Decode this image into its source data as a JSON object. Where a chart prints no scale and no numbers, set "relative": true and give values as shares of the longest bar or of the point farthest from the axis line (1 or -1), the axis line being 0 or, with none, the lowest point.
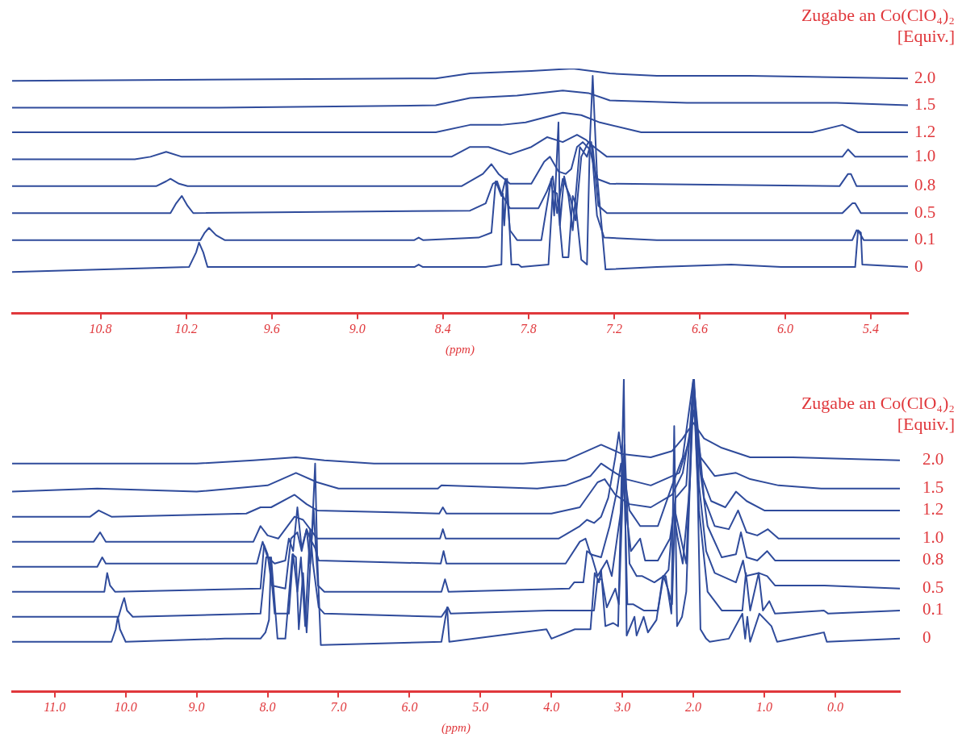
{
  "chart_data": [
    {
      "type": "line",
      "relative": true,
      "marker": "none",
      "legend_title": "Zugabe an Co(ClO₄)₂\n[Equiv.]",
      "xlabel": "(ppm)",
      "xlim": [
        11.42,
        5.14
      ],
      "xticks": [
        10.8,
        10.2,
        9.6,
        {
          "value": 9,
          "label": "9.0"
        },
        8.4,
        7.8,
        7.2,
        6.6,
        {
          "value": 6,
          "label": "6.0"
        },
        5.4
      ],
      "series": [
        {
          "name": "2.0",
          "color": "#2f4b9b",
          "x": [
            11.42,
            8.45,
            8.21,
            7.78,
            7.49,
            7.23,
            6.9,
            6.25,
            5.14
          ],
          "values": [
            0.95,
            0.96,
            0.98,
            0.99,
            1,
            0.98,
            0.97,
            0.97,
            0.96
          ]
        },
        {
          "name": "1.5",
          "color": "#2f4b9b",
          "x": [
            11.42,
            9.97,
            8.45,
            8.21,
            7.88,
            7.56,
            7.38,
            7.23,
            6.69,
            5.64,
            5.14
          ],
          "values": [
            0.84,
            0.84,
            0.85,
            0.88,
            0.89,
            0.91,
            0.9,
            0.87,
            0.86,
            0.86,
            0.85
          ]
        },
        {
          "name": "1.2",
          "color": "#2f4b9b",
          "x": [
            11.42,
            10.36,
            9.97,
            8.45,
            8.21,
            7.99,
            7.82,
            7.56,
            7.43,
            7.3,
            7.01,
            5.81,
            5.6,
            5.49,
            5.14
          ],
          "values": [
            0.74,
            0.74,
            0.74,
            0.74,
            0.77,
            0.77,
            0.78,
            0.82,
            0.81,
            0.78,
            0.74,
            0.74,
            0.77,
            0.74,
            0.74
          ]
        },
        {
          "name": "1.0",
          "color": "#2f4b9b",
          "x": [
            11.42,
            10.56,
            10.45,
            10.34,
            10.23,
            8.34,
            8.21,
            8.08,
            7.93,
            7.78,
            7.67,
            7.56,
            7.46,
            7.4,
            7.34,
            7.25,
            5.71,
            5.6,
            5.56,
            5.51,
            5.14
          ],
          "values": [
            0.63,
            0.63,
            0.64,
            0.66,
            0.64,
            0.64,
            0.68,
            0.68,
            0.65,
            0.68,
            0.72,
            0.7,
            0.73,
            0.71,
            0.68,
            0.64,
            0.64,
            0.64,
            0.67,
            0.64,
            0.64
          ]
        },
        {
          "name": "0.8",
          "color": "#2f4b9b",
          "x": [
            11.42,
            10.41,
            10.34,
            10.31,
            10.25,
            10.19,
            8.27,
            8.12,
            8.06,
            8.01,
            7.93,
            7.78,
            7.69,
            7.65,
            7.59,
            7.54,
            7.5,
            7.46,
            7.42,
            7.37,
            7.32,
            7.23,
            5.62,
            5.56,
            5.54,
            5.5,
            5.14
          ],
          "values": [
            0.52,
            0.52,
            0.54,
            0.55,
            0.53,
            0.52,
            0.52,
            0.57,
            0.61,
            0.57,
            0.53,
            0.53,
            0.62,
            0.64,
            0.58,
            0.57,
            0.59,
            0.68,
            0.7,
            0.67,
            0.55,
            0.53,
            0.52,
            0.57,
            0.57,
            0.52,
            0.52
          ]
        },
        {
          "name": "0.5",
          "color": "#2f4b9b",
          "x": [
            11.42,
            10.31,
            10.27,
            10.23,
            10.19,
            10.15,
            8.21,
            8.1,
            8.05,
            8.02,
            7.99,
            7.93,
            7.73,
            7.67,
            7.63,
            7.6,
            7.56,
            7.51,
            7.47,
            7.43,
            7.38,
            7.35,
            7.31,
            7.25,
            5.6,
            5.53,
            5.51,
            5.47,
            5.14
          ],
          "values": [
            0.41,
            0.41,
            0.45,
            0.48,
            0.44,
            0.41,
            0.42,
            0.45,
            0.53,
            0.54,
            0.49,
            0.43,
            0.43,
            0.5,
            0.56,
            0.41,
            0.55,
            0.48,
            0.38,
            0.64,
            0.7,
            0.68,
            0.44,
            0.41,
            0.41,
            0.45,
            0.45,
            0.41,
            0.41
          ]
        },
        {
          "name": "0.1",
          "color": "#2f4b9b",
          "x": [
            11.42,
            10.1,
            10.07,
            10.04,
            9.99,
            9.93,
            8.6,
            8.57,
            8.54,
            8.15,
            8.06,
            8.03,
            7.99,
            7.96,
            7.93,
            7.88,
            7.71,
            7.64,
            7.62,
            7.59,
            7.58,
            7.55,
            7.52,
            7.49,
            7.44,
            7.39,
            7.36,
            7.32,
            7.27,
            6.9,
            5.53,
            5.5,
            5.48,
            5.45,
            5.14
          ],
          "values": [
            0.3,
            0.3,
            0.33,
            0.35,
            0.32,
            0.3,
            0.3,
            0.31,
            0.3,
            0.31,
            0.33,
            0.54,
            0.48,
            0.55,
            0.34,
            0.3,
            0.3,
            0.55,
            0.4,
            0.78,
            0.36,
            0.56,
            0.48,
            0.34,
            0.68,
            0.64,
            0.7,
            0.4,
            0.31,
            0.3,
            0.3,
            0.34,
            0.33,
            0.3,
            0.3
          ]
        },
        {
          "name": "0",
          "color": "#2f4b9b",
          "x": [
            11.42,
            10.18,
            10.13,
            10.11,
            10.08,
            10.05,
            8.6,
            8.57,
            8.54,
            8.1,
            7.99,
            7.98,
            7.97,
            7.95,
            7.92,
            7.87,
            7.85,
            7.66,
            7.63,
            7.6,
            7.56,
            7.52,
            7.49,
            7.47,
            7.43,
            7.39,
            7.37,
            7.35,
            7.32,
            7.26,
            6.9,
            6.38,
            6.03,
            5.51,
            5.49,
            5.47,
            5.46,
            5.14
          ],
          "values": [
            0.17,
            0.19,
            0.25,
            0.29,
            0.25,
            0.19,
            0.19,
            0.2,
            0.19,
            0.19,
            0.2,
            0.49,
            0.36,
            0.55,
            0.2,
            0.2,
            0.19,
            0.2,
            0.5,
            0.49,
            0.23,
            0.23,
            0.48,
            0.45,
            0.22,
            0.2,
            0.7,
            0.97,
            0.57,
            0.18,
            0.19,
            0.2,
            0.19,
            0.19,
            0.34,
            0.33,
            0.2,
            0.19
          ]
        }
      ]
    },
    {
      "type": "line",
      "relative": true,
      "marker": "none",
      "legend_title": "Zugabe an Co(ClO₄)₂\n[Equiv.]",
      "xlabel": "(ppm)",
      "xlim": [
        11.6,
        -0.91
      ],
      "xticks": [
        {
          "value": 11,
          "label": "11.0"
        },
        {
          "value": 10,
          "label": "10.0"
        },
        {
          "value": 9,
          "label": "9.0"
        },
        {
          "value": 8,
          "label": "8.0"
        },
        {
          "value": 7,
          "label": "7.0"
        },
        {
          "value": 6,
          "label": "6.0"
        },
        {
          "value": 5,
          "label": "5.0"
        },
        {
          "value": 4,
          "label": "4.0"
        },
        {
          "value": 3,
          "label": "3.0"
        },
        {
          "value": 2,
          "label": "2.0"
        },
        {
          "value": 1,
          "label": "1.0"
        },
        {
          "value": 0,
          "label": "0.0"
        }
      ],
      "series": [
        {
          "name": "2.0",
          "color": "#2f4b9b",
          "x": [
            11.6,
            10,
            9,
            8.2,
            7.6,
            7.2,
            6.5,
            5.5,
            4.4,
            3.8,
            3.3,
            3,
            2.6,
            2.3,
            2.15,
            2,
            1.85,
            1.6,
            1.2,
            0.6,
            -0.91
          ],
          "values": [
            0.73,
            0.73,
            0.73,
            0.74,
            0.75,
            0.74,
            0.73,
            0.73,
            0.73,
            0.74,
            0.79,
            0.76,
            0.75,
            0.77,
            0.81,
            0.86,
            0.81,
            0.78,
            0.75,
            0.75,
            0.74
          ]
        },
        {
          "name": "1.5",
          "color": "#2f4b9b",
          "x": [
            11.6,
            10.4,
            9,
            8,
            7.6,
            7.3,
            7,
            5.6,
            5.55,
            4.2,
            3.8,
            3.45,
            3.3,
            3.1,
            2.95,
            2.6,
            2.2,
            2.05,
            2,
            1.9,
            1.7,
            1.4,
            1.2,
            0.8,
            0.2,
            -0.91
          ],
          "values": [
            0.64,
            0.65,
            0.64,
            0.66,
            0.7,
            0.67,
            0.65,
            0.65,
            0.66,
            0.65,
            0.66,
            0.69,
            0.73,
            0.7,
            0.68,
            0.66,
            0.7,
            0.81,
            0.9,
            0.75,
            0.69,
            0.7,
            0.68,
            0.66,
            0.65,
            0.65
          ]
        },
        {
          "name": "1.2",
          "color": "#2f4b9b",
          "x": [
            11.6,
            10.5,
            10.38,
            10.2,
            8.3,
            8.1,
            7.95,
            7.62,
            7.45,
            7.3,
            5.58,
            5.53,
            5.48,
            4,
            3.6,
            3.35,
            3.25,
            3.1,
            2.9,
            2.6,
            2.3,
            2.15,
            2.05,
            2,
            1.9,
            1.75,
            1.55,
            1.4,
            1.25,
            1,
            0.5,
            -0.91
          ],
          "values": [
            0.56,
            0.56,
            0.58,
            0.56,
            0.57,
            0.59,
            0.59,
            0.63,
            0.6,
            0.58,
            0.57,
            0.59,
            0.57,
            0.57,
            0.59,
            0.67,
            0.68,
            0.63,
            0.6,
            0.59,
            0.63,
            0.7,
            0.83,
            0.97,
            0.7,
            0.61,
            0.59,
            0.64,
            0.61,
            0.58,
            0.58,
            0.58
          ]
        },
        {
          "name": "1.0",
          "color": "#2f4b9b",
          "x": [
            11.6,
            10.45,
            10.36,
            10.28,
            8.2,
            8.1,
            8,
            7.85,
            7.62,
            7.5,
            7.4,
            7.3,
            5.57,
            5.53,
            5.49,
            3.9,
            3.6,
            3.5,
            3.4,
            3.3,
            3.2,
            3.1,
            3.05,
            2.98,
            2.9,
            2.75,
            2.5,
            2.3,
            2.15,
            2,
            1.85,
            1.7,
            1.5,
            1.37,
            1.25,
            1.1,
            0.95,
            0.8,
            -0.91
          ],
          "values": [
            0.48,
            0.48,
            0.51,
            0.48,
            0.48,
            0.53,
            0.5,
            0.49,
            0.56,
            0.55,
            0.52,
            0.49,
            0.49,
            0.52,
            0.49,
            0.49,
            0.53,
            0.55,
            0.54,
            0.56,
            0.62,
            0.75,
            0.83,
            0.7,
            0.58,
            0.53,
            0.53,
            0.66,
            0.75,
            1,
            0.62,
            0.53,
            0.52,
            0.58,
            0.51,
            0.5,
            0.52,
            0.49,
            0.49
          ]
        },
        {
          "name": "0.8",
          "color": "#2f4b9b",
          "x": [
            11.6,
            10.4,
            10.33,
            10.28,
            8.15,
            8.07,
            8,
            7.9,
            7.75,
            7.7,
            7.64,
            7.58,
            7.52,
            7.45,
            7.4,
            7.33,
            7.28,
            5.56,
            5.52,
            5.48,
            3.8,
            3.6,
            3.52,
            3.45,
            3.3,
            3.18,
            3.08,
            3.02,
            2.95,
            2.88,
            2.75,
            2.68,
            2.5,
            2.33,
            2.25,
            2.1,
            2,
            1.9,
            1.8,
            1.6,
            1.4,
            1.33,
            1.25,
            1.1,
            0.96,
            0.85,
            -0.91
          ],
          "values": [
            0.4,
            0.4,
            0.43,
            0.41,
            0.41,
            0.48,
            0.43,
            0.41,
            0.42,
            0.49,
            0.45,
            0.59,
            0.46,
            0.52,
            0.49,
            0.46,
            0.42,
            0.41,
            0.45,
            0.41,
            0.41,
            0.48,
            0.49,
            0.44,
            0.43,
            0.53,
            0.64,
            0.73,
            0.58,
            0.45,
            0.49,
            0.42,
            0.42,
            0.49,
            0.62,
            0.66,
            1,
            0.7,
            0.53,
            0.43,
            0.44,
            0.51,
            0.43,
            0.42,
            0.45,
            0.42,
            0.42
          ]
        },
        {
          "name": "0.5",
          "color": "#2f4b9b",
          "x": [
            11.6,
            10.3,
            10.26,
            10.22,
            10.15,
            8.1,
            8.05,
            8,
            7.94,
            7.75,
            7.67,
            7.58,
            7.52,
            7.45,
            7.4,
            7.35,
            7.29,
            7.2,
            5.55,
            5.5,
            5.45,
            3.75,
            3.68,
            3.55,
            3.5,
            3.44,
            3.35,
            3.22,
            3.15,
            3.02,
            2.97,
            2.9,
            2.8,
            2.72,
            2.55,
            2.42,
            2.35,
            2.28,
            2.22,
            2.15,
            2.05,
            1.99,
            1.92,
            1.82,
            1.7,
            1.4,
            1.3,
            1.26,
            1.08,
            0.96,
            0.85,
            0.15,
            -0.91
          ],
          "values": [
            0.32,
            0.32,
            0.38,
            0.34,
            0.32,
            0.33,
            0.47,
            0.44,
            0.34,
            0.33,
            0.49,
            0.51,
            0.45,
            0.52,
            0.41,
            0.58,
            0.34,
            0.32,
            0.32,
            0.36,
            0.32,
            0.33,
            0.35,
            0.35,
            0.45,
            0.44,
            0.37,
            0.42,
            0.37,
            0.58,
            0.79,
            0.41,
            0.37,
            0.37,
            0.35,
            0.37,
            0.39,
            0.58,
            0.49,
            0.41,
            0.66,
            1,
            0.66,
            0.45,
            0.38,
            0.35,
            0.42,
            0.37,
            0.38,
            0.37,
            0.34,
            0.34,
            0.33
          ]
        },
        {
          "name": "0.1",
          "color": "#2f4b9b",
          "x": [
            11.6,
            10.1,
            10.05,
            10.02,
            9.98,
            9.9,
            8.1,
            8.02,
            7.97,
            7.9,
            7.7,
            7.64,
            7.58,
            7.53,
            7.47,
            7.4,
            7.36,
            7.28,
            7.2,
            5.55,
            5.46,
            5.42,
            4.05,
            3.7,
            3.4,
            3.35,
            3.29,
            3.22,
            3.1,
            3.05,
            2.98,
            2.93,
            2.85,
            2.7,
            2.5,
            2.42,
            2.36,
            2.3,
            2.26,
            2.1,
            2,
            1.92,
            1.8,
            1.6,
            1.31,
            1.26,
            1.2,
            1.08,
            1.02,
            0.93,
            0.85,
            0.16,
            0.1,
            -0.91
          ],
          "values": [
            0.24,
            0.24,
            0.28,
            0.3,
            0.26,
            0.24,
            0.25,
            0.43,
            0.43,
            0.25,
            0.25,
            0.44,
            0.32,
            0.43,
            0.21,
            0.52,
            0.41,
            0.27,
            0.25,
            0.24,
            0.27,
            0.25,
            0.26,
            0.26,
            0.26,
            0.36,
            0.36,
            0.27,
            0.33,
            0.28,
            0.73,
            0.28,
            0.28,
            0.26,
            0.26,
            0.37,
            0.33,
            0.28,
            0.58,
            0.41,
            1,
            0.58,
            0.32,
            0.26,
            0.26,
            0.38,
            0.26,
            0.38,
            0.26,
            0.29,
            0.25,
            0.26,
            0.25,
            0.26
          ]
        },
        {
          "name": "0",
          "color": "#2f4b9b",
          "x": [
            11.6,
            10.2,
            10.14,
            10.11,
            10.08,
            10,
            8.6,
            8.1,
            8.03,
            7.98,
            7.95,
            7.86,
            7.75,
            7.65,
            7.6,
            7.56,
            7.5,
            7.45,
            7.37,
            7.33,
            7.3,
            7.25,
            5.55,
            5.47,
            5.44,
            4.07,
            4,
            3.67,
            3.45,
            3.39,
            3.33,
            3.3,
            3.24,
            3.13,
            3.06,
            2.98,
            2.94,
            2.83,
            2.8,
            2.7,
            2.64,
            2.52,
            2.43,
            2.39,
            2.31,
            2.27,
            2.23,
            2.16,
            2.1,
            2.05,
            2,
            1.94,
            1.9,
            1.82,
            1.77,
            1.5,
            1.31,
            1.27,
            1.24,
            1.2,
            1.07,
            0.9,
            0.82,
            0.16,
            0.12,
            -0.91
          ],
          "values": [
            0.16,
            0.16,
            0.2,
            0.24,
            0.2,
            0.16,
            0.17,
            0.17,
            0.19,
            0.23,
            0.43,
            0.17,
            0.17,
            0.44,
            0.43,
            0.2,
            0.38,
            0.19,
            0.53,
            0.73,
            0.43,
            0.15,
            0.16,
            0.27,
            0.16,
            0.2,
            0.17,
            0.2,
            0.2,
            0.38,
            0.35,
            0.39,
            0.21,
            0.22,
            0.21,
            1,
            0.18,
            0.24,
            0.18,
            0.24,
            0.19,
            0.23,
            0.37,
            0.37,
            0.25,
            0.85,
            0.21,
            0.24,
            0.32,
            0.66,
            1,
            0.66,
            0.2,
            0.17,
            0.16,
            0.17,
            0.25,
            0.17,
            0.24,
            0.16,
            0.25,
            0.21,
            0.16,
            0.19,
            0.16,
            0.17
          ]
        }
      ]
    }
  ]
}
